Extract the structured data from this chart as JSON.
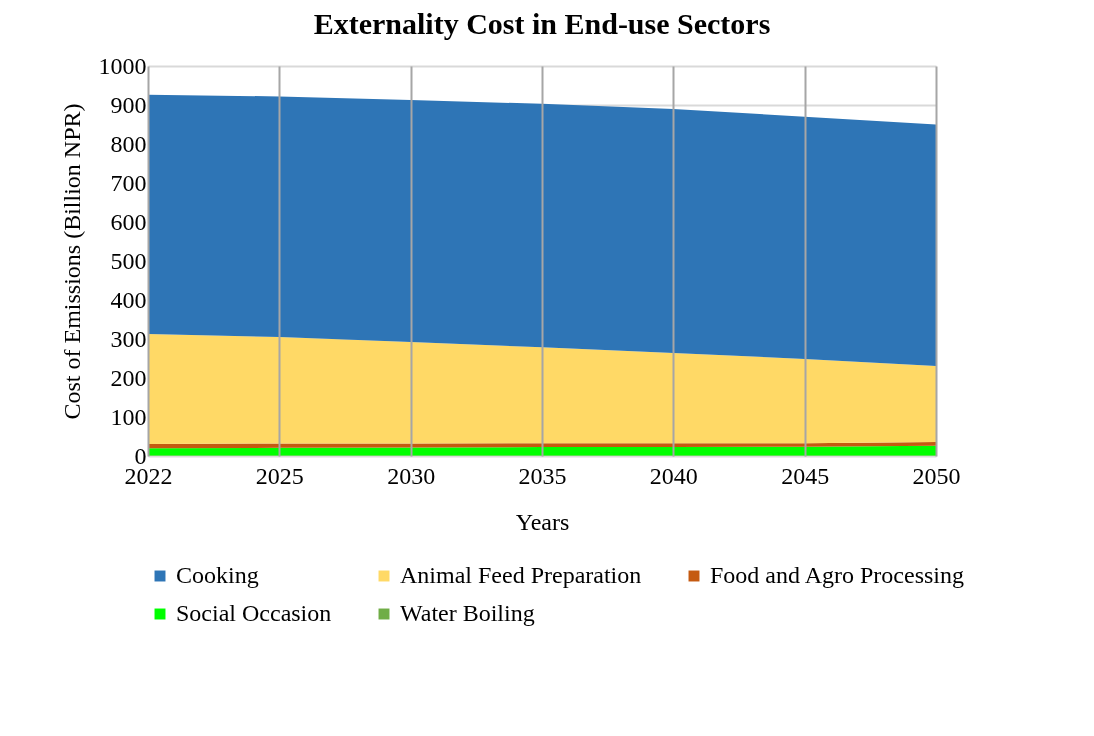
{
  "chart_data": {
    "type": "area",
    "title": "Externality Cost in End-use Sectors",
    "xlabel": "Years",
    "ylabel": "Cost of Emissions (Billion NPR)",
    "categories": [
      "2022",
      "2025",
      "2030",
      "2035",
      "2040",
      "2045",
      "2050"
    ],
    "stacked": true,
    "ylim": [
      0,
      1000
    ],
    "yticks": [
      0,
      100,
      200,
      300,
      400,
      500,
      600,
      700,
      800,
      900,
      1000
    ],
    "grid": true,
    "legend": "bottom",
    "series": [
      {
        "name": "Water Boiling",
        "color": "#70ad47",
        "values": [
          1,
          1,
          1,
          1,
          1,
          1,
          1
        ]
      },
      {
        "name": "Social Occasion",
        "color": "#00ff00",
        "values": [
          19,
          20,
          21,
          22,
          22,
          23,
          25
        ]
      },
      {
        "name": "Food and Agro Processing",
        "color": "#c55a11",
        "values": [
          11,
          11,
          10,
          10,
          10,
          9,
          10
        ]
      },
      {
        "name": "Animal Feed Preparation",
        "color": "#ffd966",
        "values": [
          282,
          273,
          260,
          246,
          231,
          216,
          195
        ]
      },
      {
        "name": "Cooking",
        "color": "#2e75b6",
        "values": [
          613,
          617,
          621,
          624,
          626,
          621,
          619
        ]
      }
    ]
  }
}
